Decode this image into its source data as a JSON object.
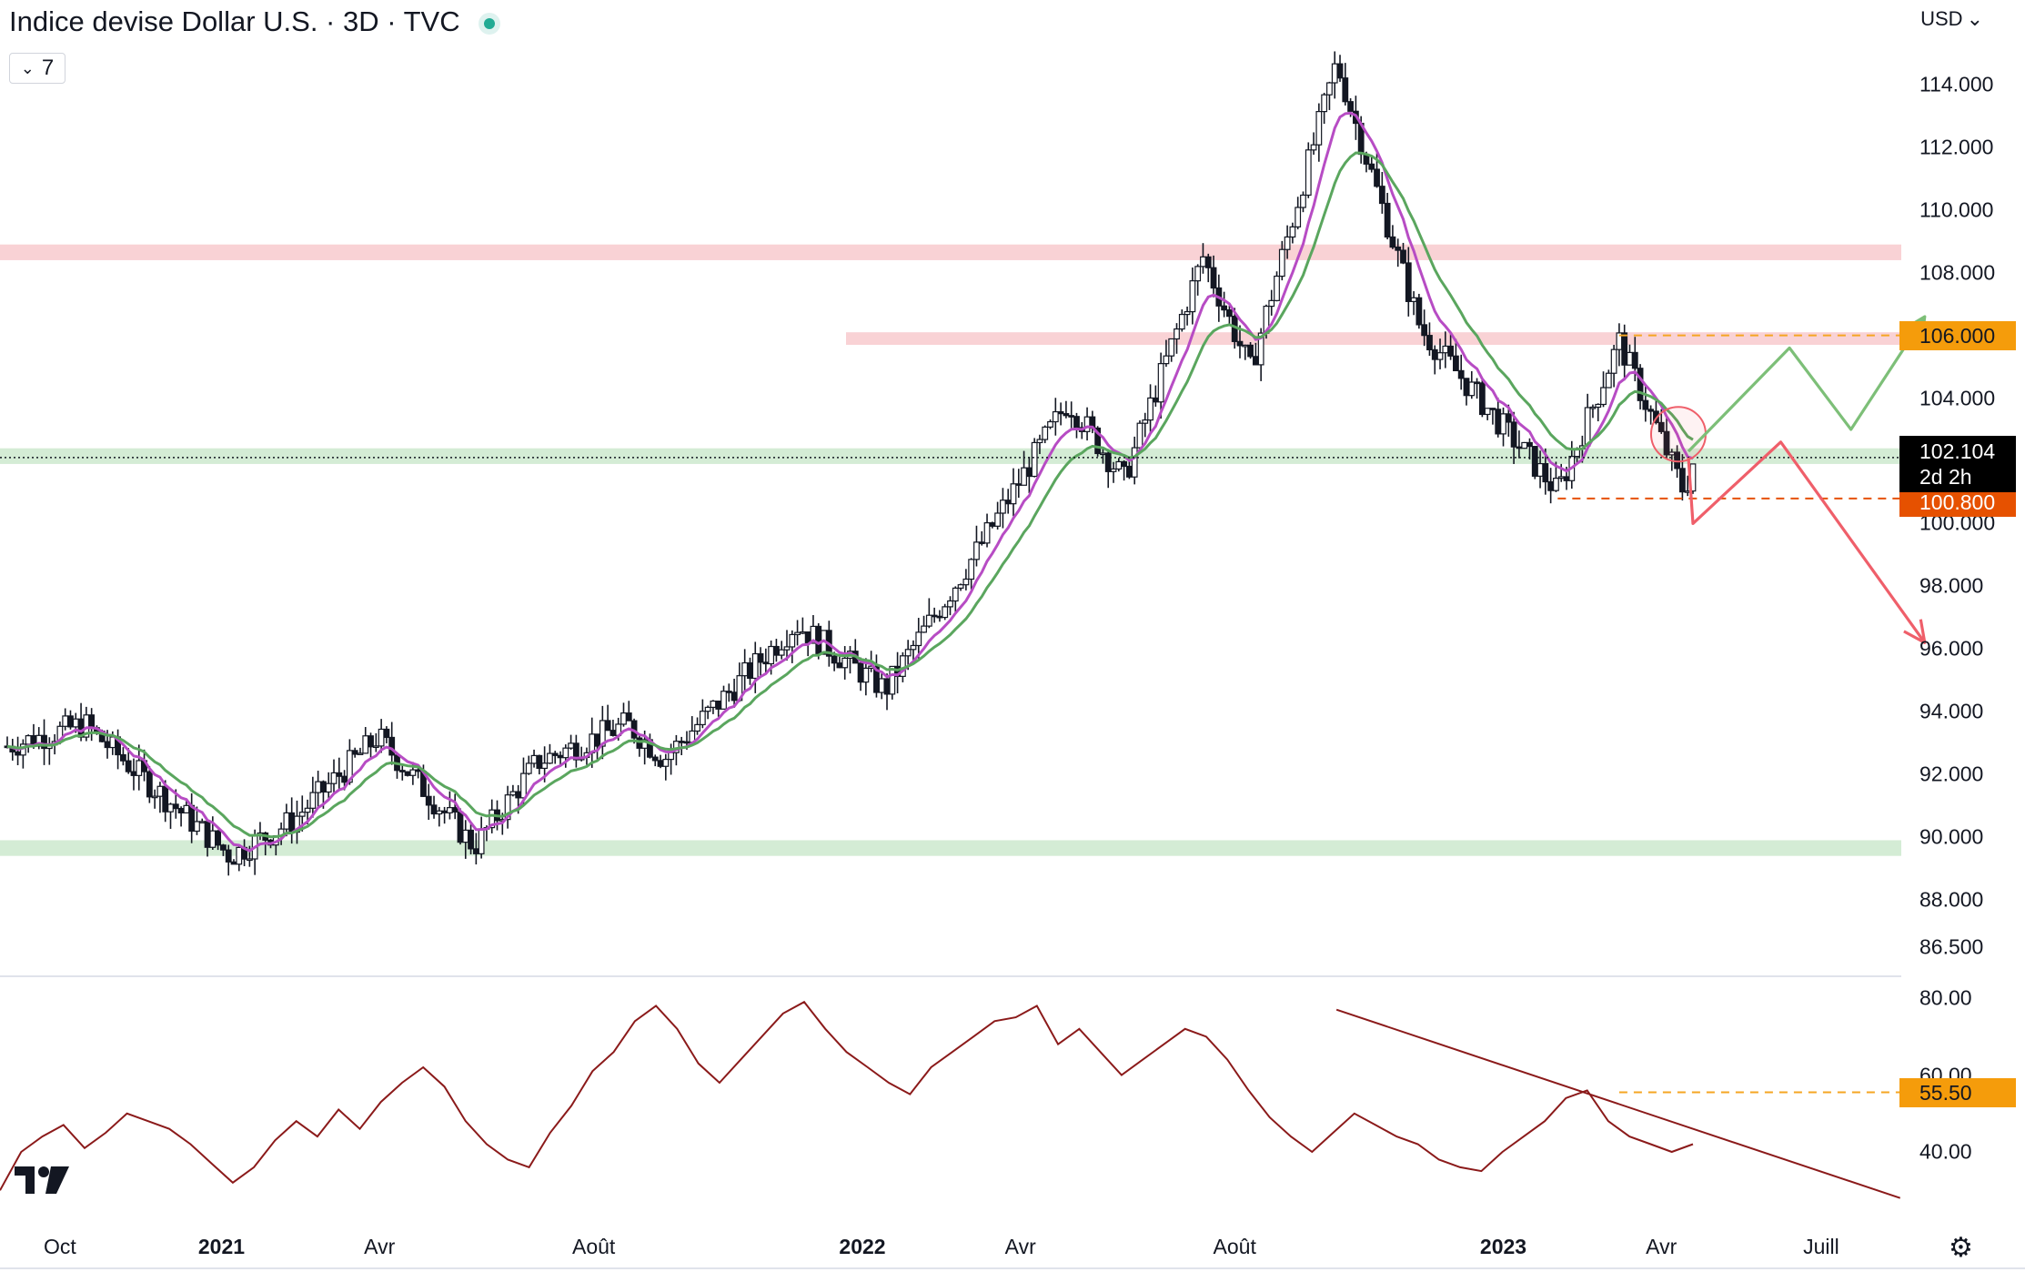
{
  "header": {
    "title": "Indice devise Dollar U.S. · 3D · TVC",
    "indicator_count": "7",
    "currency": "USD"
  },
  "colors": {
    "up": "#131722",
    "down": "#131722",
    "ma_fast": "#b74cc4",
    "ma_slow": "#5aa65e",
    "resistance_zone": "#f9d2d5",
    "support_zone": "#d4ecd5",
    "rsi": "#8b1a1a",
    "price_tag_bg": "#000000",
    "level_tag_bg": "#f59c0b",
    "low_tag_bg": "#e65100",
    "scenario_up": "#7dbf78",
    "scenario_down": "#ef5f6a"
  },
  "chart_data": [
    {
      "type": "candlestick",
      "title": "Indice devise Dollar U.S. · 3D · TVC",
      "timeframe": "3D",
      "x_axis": {
        "ticks": [
          "Oct",
          "2021",
          "Avr",
          "Août",
          "2022",
          "Avr",
          "Août",
          "2023",
          "Avr",
          "Juill"
        ],
        "bold_ticks": [
          "2021",
          "2022",
          "2023"
        ]
      },
      "y_axis": {
        "ticks": [
          "114.000",
          "112.000",
          "110.000",
          "108.000",
          "106.000",
          "104.000",
          "102.000",
          "100.000",
          "98.000",
          "96.000",
          "94.000",
          "92.000",
          "90.000",
          "88.000",
          "86.500"
        ],
        "range": [
          86.5,
          115
        ]
      },
      "key_points": [
        {
          "date": "2020-09-01",
          "close": 92.9
        },
        {
          "date": "2020-10-15",
          "close": 93.6
        },
        {
          "date": "2020-12-01",
          "close": 91.2
        },
        {
          "date": "2021-01-06",
          "close": 89.4
        },
        {
          "date": "2021-02-10",
          "close": 90.5
        },
        {
          "date": "2021-03-31",
          "close": 93.2
        },
        {
          "date": "2021-05-25",
          "close": 89.7
        },
        {
          "date": "2021-06-30",
          "close": 92.4
        },
        {
          "date": "2021-08-20",
          "close": 93.6
        },
        {
          "date": "2021-09-10",
          "close": 92.5
        },
        {
          "date": "2021-11-24",
          "close": 96.8
        },
        {
          "date": "2022-01-14",
          "close": 94.7
        },
        {
          "date": "2022-03-07",
          "close": 99.1
        },
        {
          "date": "2022-04-28",
          "close": 103.9
        },
        {
          "date": "2022-05-30",
          "close": 101.4
        },
        {
          "date": "2022-07-14",
          "close": 108.5
        },
        {
          "date": "2022-08-10",
          "close": 104.9
        },
        {
          "date": "2022-09-28",
          "close": 114.7
        },
        {
          "date": "2022-11-15",
          "close": 106.2
        },
        {
          "date": "2023-02-01",
          "close": 101.0
        },
        {
          "date": "2023-03-08",
          "close": 105.8
        },
        {
          "date": "2023-04-14",
          "close": 101.0
        },
        {
          "date": "2023-04-20",
          "close": 102.1
        }
      ],
      "moving_averages": [
        {
          "color": "#b74cc4"
        },
        {
          "color": "#5aa65e"
        }
      ],
      "last_price": "102.104",
      "countdown": "2d 2h",
      "levels": [
        {
          "value": "106.000",
          "style": "dashed"
        },
        {
          "value": "100.800",
          "style": "dashed"
        }
      ],
      "zones": [
        {
          "kind": "resistance",
          "from": 108.4,
          "to": 108.9
        },
        {
          "kind": "resistance",
          "from": 105.7,
          "to": 106.1
        },
        {
          "kind": "support",
          "from": 101.9,
          "to": 102.4
        },
        {
          "kind": "support",
          "from": 89.4,
          "to": 89.9
        }
      ],
      "scenarios": [
        {
          "kind": "bullish",
          "path": [
            102.3,
            105.6,
            103.0,
            106.6
          ]
        },
        {
          "kind": "bearish",
          "path": [
            102.1,
            100.0,
            102.6,
            96.2
          ]
        }
      ]
    },
    {
      "type": "line",
      "title": "RSI",
      "y_axis": {
        "ticks": [
          "80.00",
          "60.00",
          "40.00"
        ],
        "range": [
          25,
          85
        ]
      },
      "values": [
        30,
        40,
        44,
        47,
        41,
        45,
        50,
        48,
        46,
        42,
        37,
        32,
        36,
        43,
        48,
        44,
        51,
        46,
        53,
        58,
        62,
        57,
        48,
        42,
        38,
        36,
        45,
        52,
        61,
        66,
        74,
        78,
        72,
        63,
        58,
        64,
        70,
        76,
        79,
        72,
        66,
        62,
        58,
        55,
        62,
        66,
        70,
        74,
        75,
        78,
        68,
        72,
        66,
        60,
        64,
        68,
        72,
        70,
        64,
        56,
        49,
        44,
        40,
        45,
        50,
        47,
        44,
        42,
        38,
        36,
        35,
        40,
        44,
        48,
        54,
        56,
        48,
        44,
        42,
        40,
        42
      ],
      "trendline": {
        "from": 77,
        "to": 28
      },
      "level": "55.50"
    }
  ]
}
